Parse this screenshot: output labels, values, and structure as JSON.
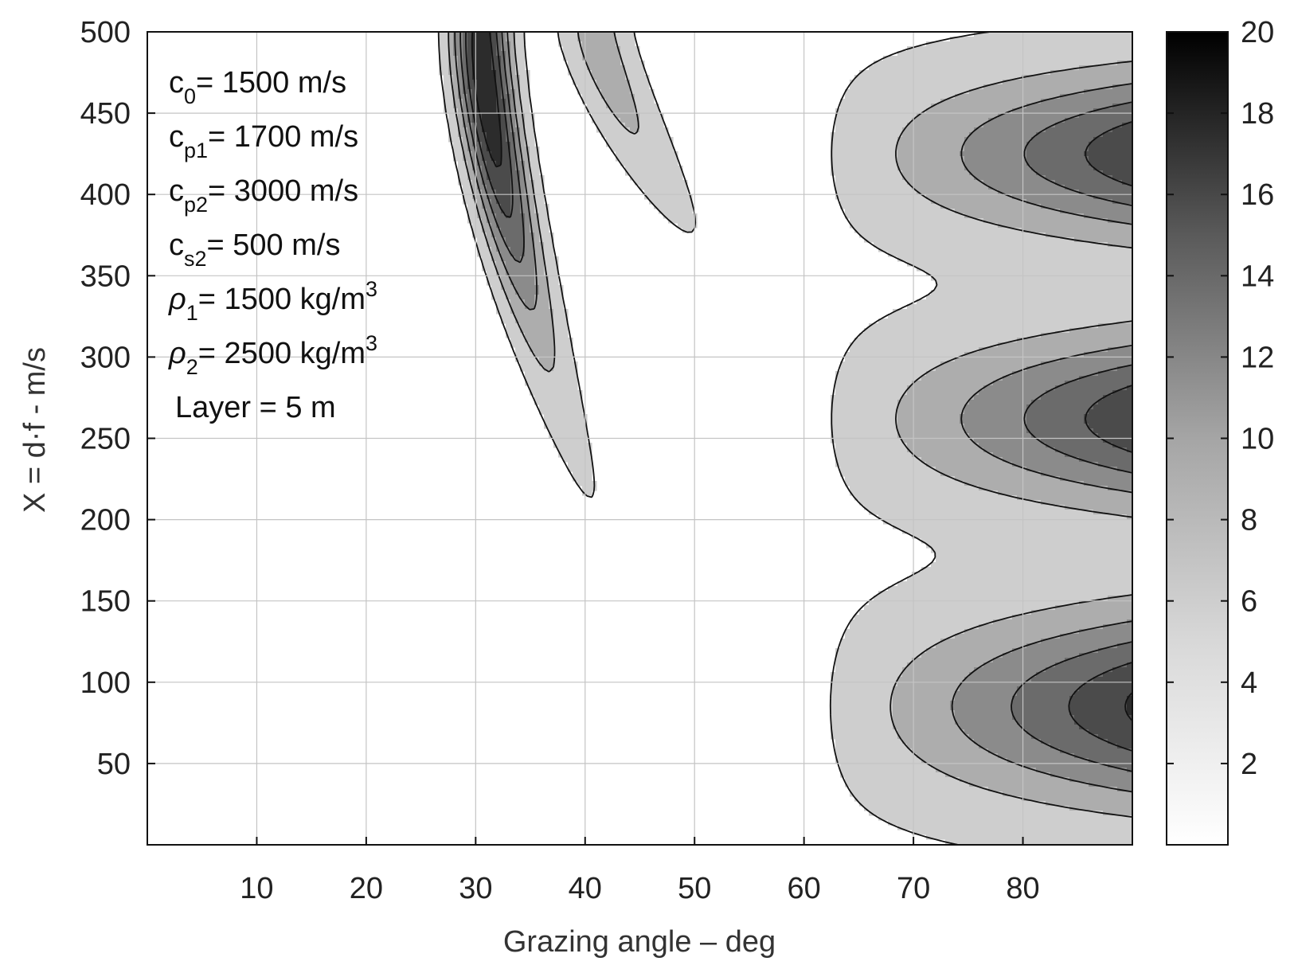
{
  "chart_data": {
    "type": "contour",
    "title": "",
    "xlabel": "Grazing angle – deg",
    "ylabel": "X = d·f - m/s",
    "xlim": [
      0,
      90
    ],
    "ylim": [
      0,
      500
    ],
    "x_ticks": [
      10,
      20,
      30,
      40,
      50,
      60,
      70,
      80
    ],
    "y_ticks": [
      50,
      100,
      150,
      200,
      250,
      300,
      350,
      400,
      450,
      500
    ],
    "grid": true,
    "colormap": "gray_reversed",
    "colorbar": {
      "range": [
        0,
        20
      ],
      "ticks": [
        2,
        4,
        6,
        8,
        10,
        12,
        14,
        16,
        18,
        20
      ]
    },
    "contour_levels": [
      2,
      5,
      8,
      11,
      14,
      17
    ],
    "annotations": [
      {
        "base": "c",
        "sub": "0",
        "text": "=  1500 m/s"
      },
      {
        "base": "c",
        "sub": "p1",
        "text": "= 1700 m/s"
      },
      {
        "base": "c",
        "sub": "p2",
        "text": "= 3000 m/s"
      },
      {
        "base": "c",
        "sub": "s2",
        "text": "= 500 m/s"
      },
      {
        "base": "ρ",
        "sub": "1",
        "text": "= 1500 kg/m",
        "sup": "3"
      },
      {
        "base": "ρ",
        "sub": "2",
        "text": "= 2500 kg/m",
        "sup": "3"
      },
      {
        "base": "",
        "sub": "",
        "text": "Layer = 5 m"
      }
    ],
    "peaks": [
      {
        "region": "left-ridge",
        "x": 32.5,
        "y": 460,
        "value": 19
      },
      {
        "region": "second-ridge",
        "x": 45,
        "y": 480,
        "value": 6
      },
      {
        "region": "upper-right-lobe",
        "x": 88,
        "y": 425,
        "value": 14
      },
      {
        "region": "middle-right-lobe",
        "x": 88,
        "y": 262,
        "value": 14
      },
      {
        "region": "lower-right-lobe",
        "x": 88,
        "y": 85,
        "value": 15
      }
    ]
  }
}
